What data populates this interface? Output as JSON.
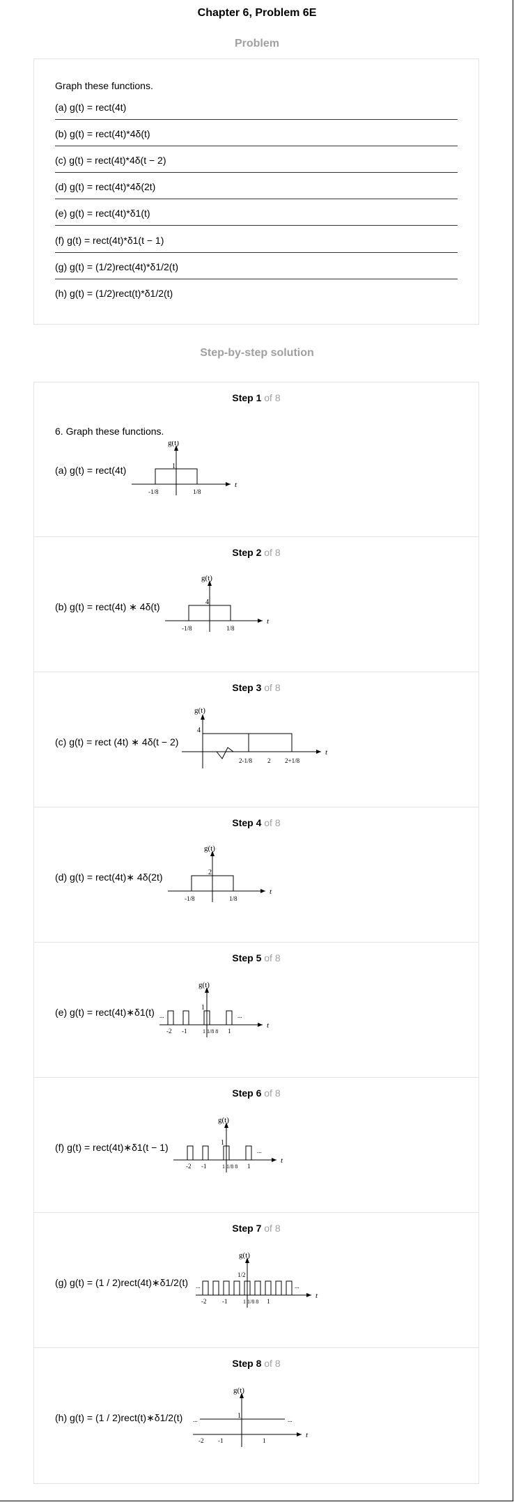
{
  "page": {
    "title": "Chapter 6, Problem 6E",
    "problem_heading": "Problem",
    "solution_heading": "Step-by-step solution"
  },
  "problem": {
    "intro": "Graph these functions.",
    "items": [
      "(a) g(t) = rect(4t)",
      "(b) g(t) = rect(4t)*4δ(t)",
      "(c) g(t) = rect(4t)*4δ(t − 2)",
      "(d) g(t) = rect(4t)*4δ(2t)",
      "(e) g(t) = rect(4t)*δ1(t)",
      "(f) g(t) = rect(4t)*δ1(t − 1)",
      "(g) g(t) = (1/2)rect(4t)*δ1/2(t)",
      "(h) g(t) = (1/2)rect(t)*δ1/2(t)"
    ]
  },
  "steps": [
    {
      "label": "Step 1",
      "of": "of 8",
      "intro": "6. Graph these functions.",
      "text": "(a) g(t) = rect(4t)"
    },
    {
      "label": "Step 2",
      "of": "of 8",
      "text": "(b) g(t) = rect(4t) ∗ 4δ(t)"
    },
    {
      "label": "Step 3",
      "of": "of 8",
      "text": "(c) g(t) = rect (4t) ∗ 4δ(t − 2)"
    },
    {
      "label": "Step 4",
      "of": "of 8",
      "text": "(d) g(t) = rect(4t)∗ 4δ(2t)"
    },
    {
      "label": "Step 5",
      "of": "of 8",
      "text": "(e) g(t) = rect(4t)∗δ1(t)"
    },
    {
      "label": "Step 6",
      "of": "of 8",
      "text": "(f) g(t) = rect(4t)∗δ1(t − 1)"
    },
    {
      "label": "Step 7",
      "of": "of 8",
      "text": "(g) g(t) = (1 / 2)rect(4t)∗δ1/2(t)"
    },
    {
      "label": "Step 8",
      "of": "of 8",
      "text": "(h) g(t) = (1 / 2)rect(t)∗δ1/2(t)"
    }
  ],
  "graph_labels": {
    "ylabel": "g(t)",
    "xlabel": "t",
    "one": "1",
    "four": "4",
    "two": "2",
    "half": "1/2",
    "neg_eighth": "-1/8",
    "pos_eighth": "1/8",
    "two_minus_eighth": "2-1/8",
    "two_plus_eighth": "2+1/8",
    "neg_two": "-2",
    "neg_one": "-1",
    "ellipsis": "...",
    "eighths_pair": "1 1/8 8"
  }
}
